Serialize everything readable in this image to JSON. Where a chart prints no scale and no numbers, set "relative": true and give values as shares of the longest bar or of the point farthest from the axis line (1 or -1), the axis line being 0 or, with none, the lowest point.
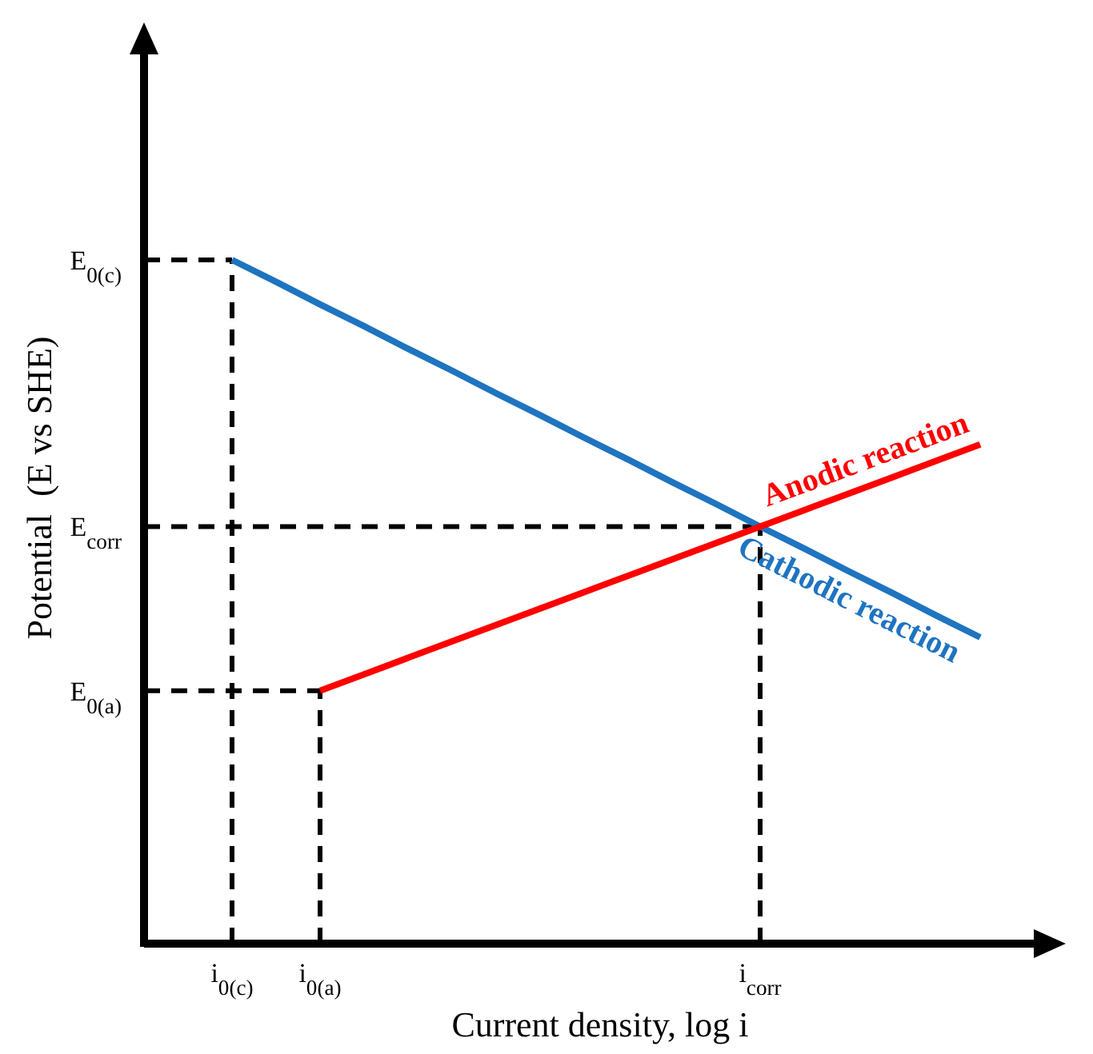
{
  "chart_data": {
    "type": "line",
    "xlabel": "Current density, log i",
    "ylabel": "Potential  (E vs SHE)",
    "relative": true,
    "marker": "none",
    "line_style": "solid",
    "categories": [
      null,
      null,
      "i$_{0(c)}$",
      null,
      "i$_{0(a)}$",
      null,
      null,
      null,
      null,
      null,
      null,
      null,
      null,
      null,
      "i$_{corr}$",
      null,
      null,
      null,
      null,
      null
    ],
    "ref_lines": [
      {
        "axis": "y",
        "value": 1,
        "label": "E$_{0(c)}$",
        "color": "#000000",
        "line_style": "dashed"
      },
      {
        "axis": "y",
        "value": 0.61,
        "label": "E$_{corr}$",
        "color": "#000000",
        "line_style": "dashed"
      },
      {
        "axis": "y",
        "value": 0.37,
        "label": "E$_{0(a)}$",
        "color": "#000000",
        "line_style": "dashed"
      },
      {
        "axis": "x",
        "value": "i$_{0(c)}$",
        "color": "#000000",
        "line_style": "dashed"
      },
      {
        "axis": "x",
        "value": "i$_{0(a)}$",
        "color": "#000000",
        "line_style": "dashed"
      },
      {
        "axis": "x",
        "value": "i$_{corr}$",
        "color": "#000000",
        "line_style": "dashed"
      }
    ],
    "series": [
      {
        "name": "Cathodic reaction",
        "color": "#1f74c0",
        "values": [
          null,
          null,
          1,
          0.968,
          0.935,
          0.903,
          0.87,
          0.838,
          0.805,
          0.773,
          0.74,
          0.708,
          0.675,
          0.643,
          0.61,
          0.578,
          0.545,
          0.513,
          0.48,
          0.448
        ]
      },
      {
        "name": "Anodic reaction",
        "color": "#ff0000",
        "values": [
          null,
          null,
          null,
          null,
          0.37,
          0.394,
          0.418,
          0.442,
          0.466,
          0.49,
          0.514,
          0.538,
          0.562,
          0.586,
          0.61,
          0.634,
          0.658,
          0.682,
          0.706,
          0.73
        ]
      }
    ]
  }
}
